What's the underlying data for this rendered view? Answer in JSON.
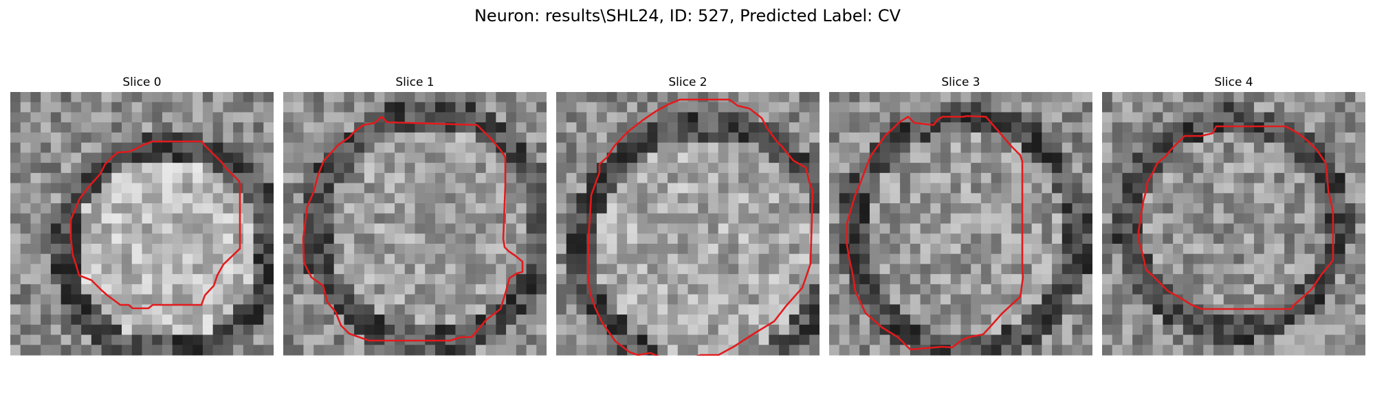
{
  "figure": {
    "title": "Neuron: results\\SHL24, ID: 527, Predicted Label: CV"
  },
  "colors": {
    "contour": "#e31a1c",
    "background": "#ffffff"
  },
  "panels": [
    {
      "title": "Slice 0"
    },
    {
      "title": "Slice 1"
    },
    {
      "title": "Slice 2"
    },
    {
      "title": "Slice 3"
    },
    {
      "title": "Slice 4"
    }
  ]
}
